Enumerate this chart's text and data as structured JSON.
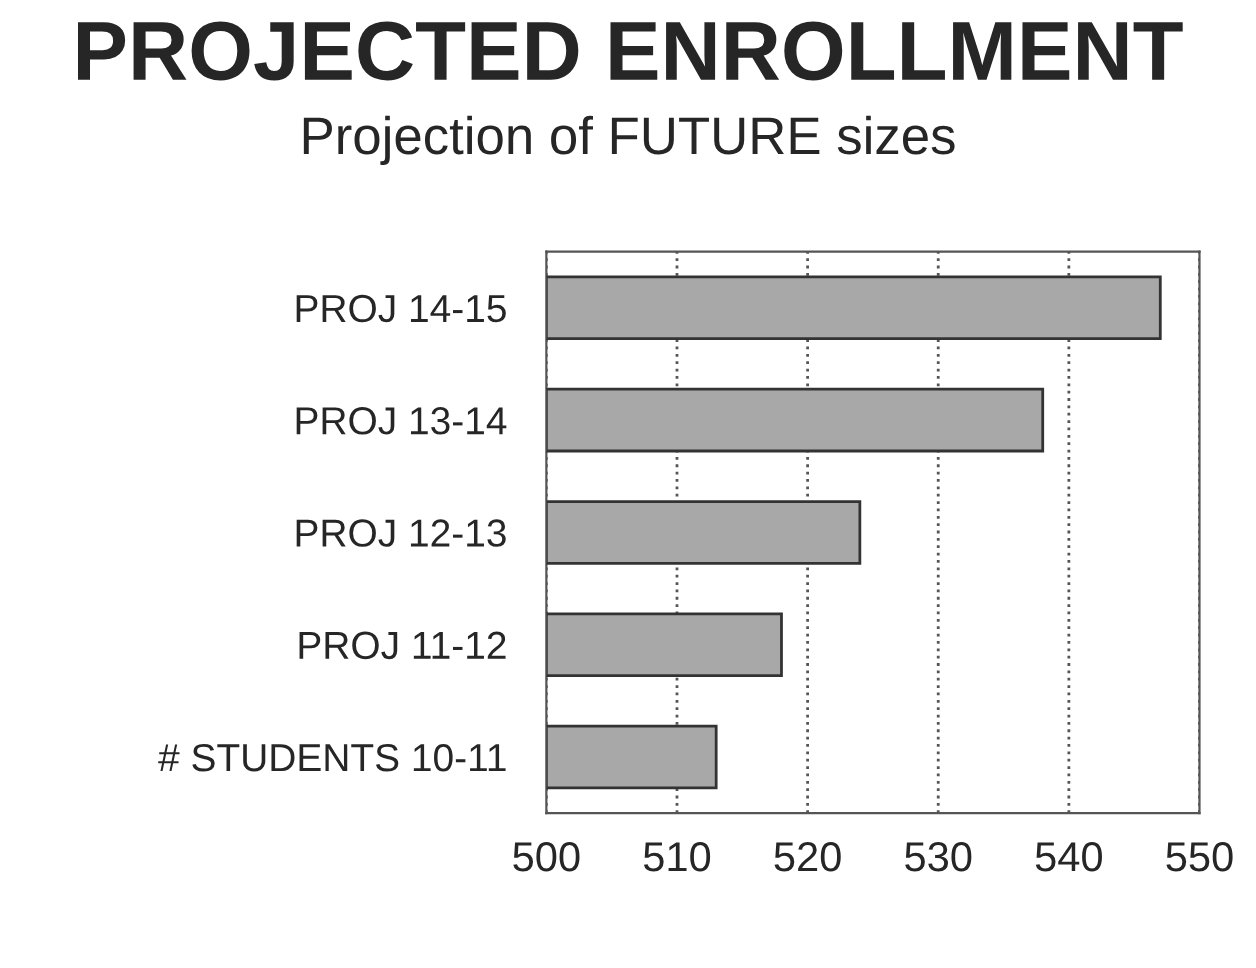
{
  "chart_data": {
    "type": "bar",
    "orientation": "horizontal",
    "title": "PROJECTED ENROLLMENT",
    "subtitle": "Projection of FUTURE sizes",
    "categories": [
      "PROJ 14-15",
      "PROJ 13-14",
      "PROJ 12-13",
      "PROJ 11-12",
      "# STUDENTS 10-11"
    ],
    "values": [
      547,
      538,
      524,
      518,
      513
    ],
    "color": "#a8a8a8",
    "xlim": [
      500,
      550
    ],
    "xticks": [
      500,
      510,
      520,
      530,
      540,
      550
    ],
    "grid": "x"
  }
}
